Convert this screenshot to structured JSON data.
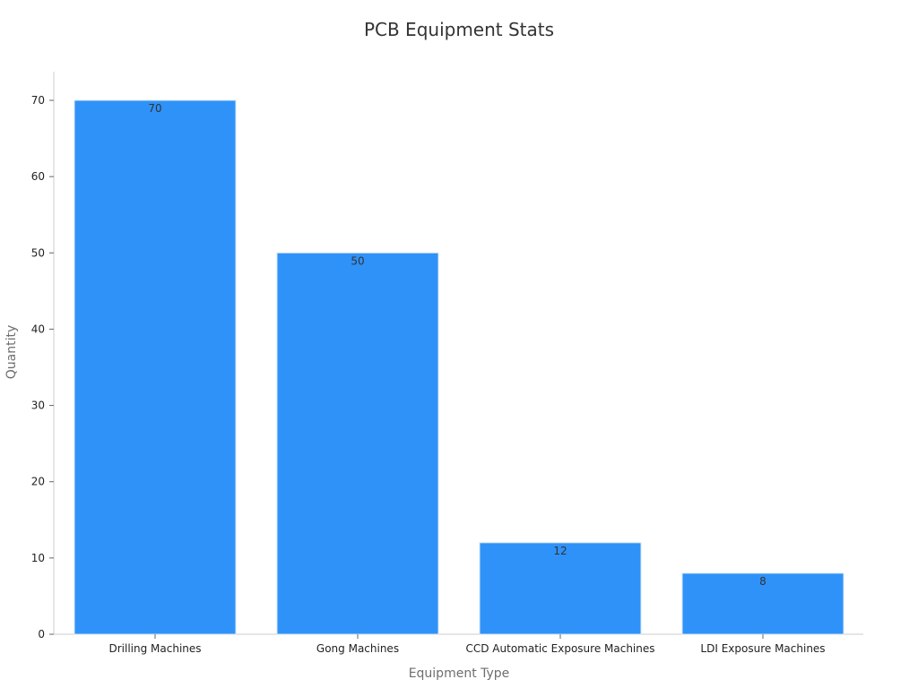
{
  "chart_data": {
    "type": "bar",
    "title": "PCB Equipment Stats",
    "xlabel": "Equipment Type",
    "ylabel": "Quantity",
    "categories": [
      "Drilling Machines",
      "Gong Machines",
      "CCD Automatic Exposure Machines",
      "LDI Exposure Machines"
    ],
    "values": [
      70,
      50,
      12,
      8
    ],
    "data_labels": [
      "70",
      "50",
      "12",
      "8"
    ],
    "ylim": [
      0,
      70
    ],
    "yticks": [
      0,
      10,
      20,
      30,
      40,
      50,
      60,
      70
    ],
    "grid": false,
    "legend": "none",
    "bar_color": "#2f92f8"
  }
}
